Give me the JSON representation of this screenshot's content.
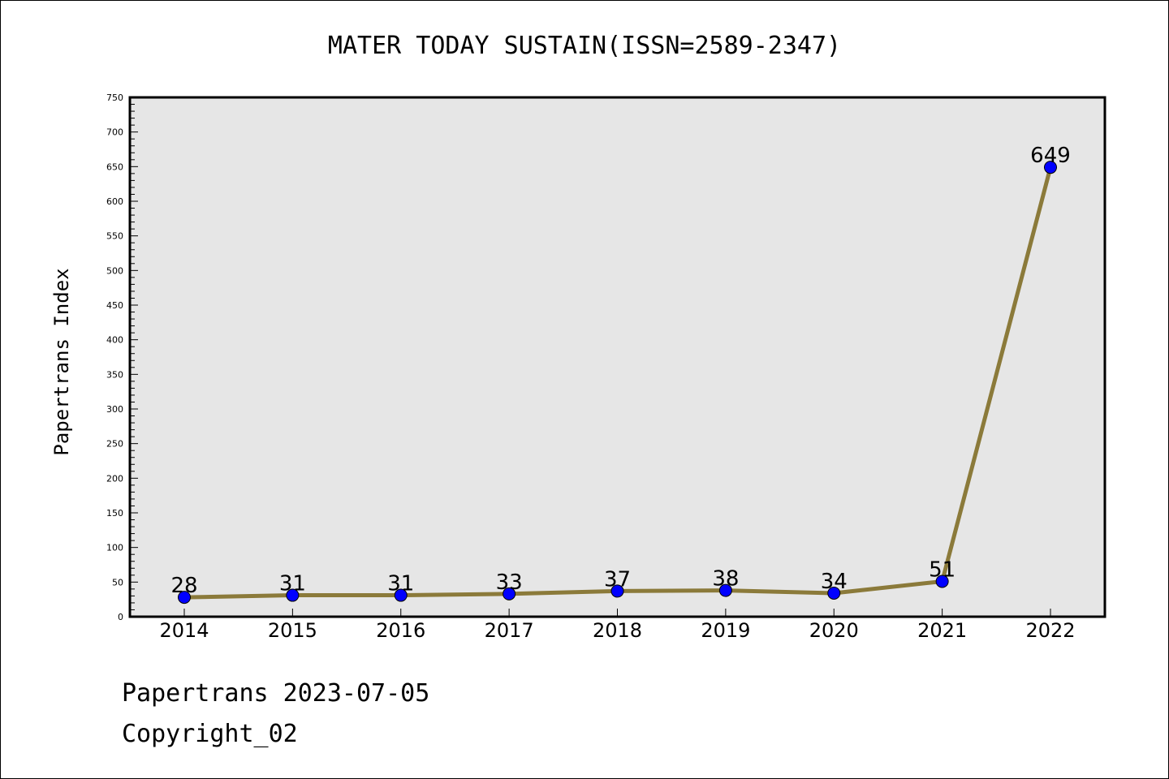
{
  "chart_data": {
    "type": "line",
    "title": "MATER TODAY SUSTAIN(ISSN=2589-2347)",
    "ylabel": "Papertrans Index",
    "xlabel": "",
    "categories": [
      "2014",
      "2015",
      "2016",
      "2017",
      "2018",
      "2019",
      "2020",
      "2021",
      "2022"
    ],
    "values": [
      28,
      31,
      31,
      33,
      37,
      38,
      34,
      51,
      649
    ],
    "ylim": [
      0,
      750
    ],
    "yticks": [
      0,
      50,
      100,
      150,
      200,
      250,
      300,
      350,
      400,
      450,
      500,
      550,
      600,
      650,
      700,
      750
    ],
    "grid": false,
    "legend": "none",
    "colors": {
      "line": "#8b7a3a",
      "marker": "#0000ff",
      "plot_background": "#e6e6e6"
    }
  },
  "footer": {
    "line1": "Papertrans 2023-07-05",
    "line2": "Copyright_02"
  }
}
